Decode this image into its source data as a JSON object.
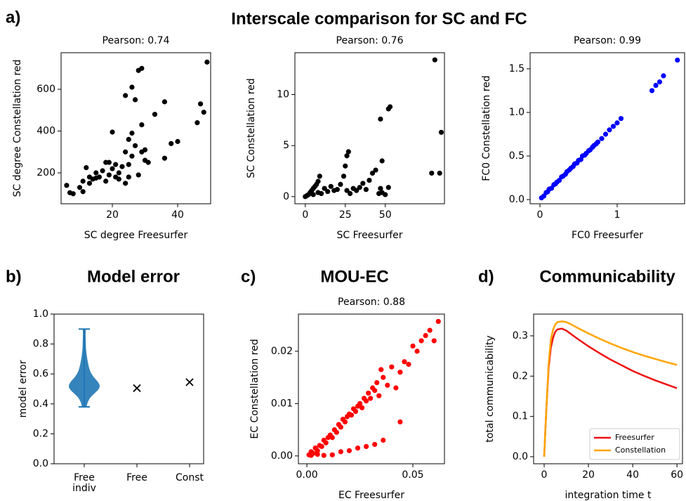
{
  "figure": {
    "panel_label": "a)",
    "title": "Interscale comparison for SC and FC"
  },
  "chart_data": [
    {
      "type": "scatter",
      "subtitle": "Pearson: 0.74",
      "xlabel": "SC degree Freesurfer",
      "ylabel": "SC degree Constellation red",
      "color": "#000000",
      "x": [
        6,
        7,
        8,
        10,
        11,
        11,
        12,
        13,
        13,
        14,
        15,
        15,
        16,
        17,
        18,
        18,
        19,
        19,
        20,
        20,
        21,
        21,
        22,
        22,
        23,
        24,
        24,
        24,
        25,
        25,
        25,
        26,
        26,
        26,
        27,
        27,
        28,
        28,
        29,
        29,
        29,
        30,
        30,
        31,
        33,
        36,
        36,
        38,
        40,
        46,
        47,
        48,
        49
      ],
      "y": [
        140,
        105,
        100,
        130,
        110,
        160,
        225,
        150,
        180,
        170,
        175,
        200,
        180,
        210,
        250,
        160,
        190,
        250,
        220,
        395,
        240,
        180,
        200,
        170,
        230,
        150,
        300,
        570,
        360,
        240,
        180,
        390,
        610,
        280,
        550,
        330,
        190,
        690,
        700,
        300,
        430,
        310,
        260,
        250,
        480,
        540,
        270,
        340,
        350,
        440,
        530,
        490,
        730
      ],
      "xlim": [
        4.3,
        50.1
      ],
      "ylim": [
        52,
        775
      ],
      "xticks": [
        20,
        40
      ],
      "yticks": [
        200,
        400,
        600
      ]
    },
    {
      "type": "scatter",
      "subtitle": "Pearson: 0.76",
      "xlabel": "SC Freesurfer",
      "ylabel": "SC Constellation red",
      "color": "#000000",
      "x": [
        0,
        1,
        2,
        3,
        4,
        5,
        6,
        7,
        8,
        9,
        5,
        8,
        10,
        12,
        14,
        16,
        18,
        20,
        22,
        24,
        25,
        26,
        27,
        26,
        28,
        30,
        32,
        34,
        36,
        38,
        40,
        42,
        44,
        46,
        47,
        48,
        48,
        50,
        47,
        53,
        52,
        52,
        81,
        85,
        79,
        84
      ],
      "y": [
        0,
        0.1,
        0.2,
        0.4,
        0.6,
        0.8,
        1.0,
        1.2,
        1.5,
        2.0,
        0.2,
        0.4,
        0.3,
        0.8,
        0.5,
        1.0,
        0.6,
        0.7,
        1.2,
        2.0,
        3.0,
        4.0,
        4.4,
        0.6,
        0.3,
        0.8,
        0.6,
        0.9,
        1.3,
        0.7,
        1.6,
        2.3,
        2.6,
        0.3,
        0.8,
        3.5,
        0.4,
        0.2,
        7.6,
        8.8,
        8.6,
        0.9,
        13.4,
        6.3,
        2.3,
        2.3
      ],
      "xlim": [
        -6.5,
        87
      ],
      "ylim": [
        -0.7,
        14.1
      ],
      "xticks": [
        0,
        25,
        50
      ],
      "yticks": [
        0,
        5,
        10
      ]
    },
    {
      "type": "scatter",
      "subtitle": "Pearson: 0.99",
      "xlabel": "FC0 Freesurfer",
      "ylabel": "FC0 Constellation red",
      "color": "#0000ff",
      "x": [
        0.02,
        0.05,
        0.08,
        0.1,
        0.12,
        0.15,
        0.18,
        0.2,
        0.22,
        0.25,
        0.28,
        0.3,
        0.33,
        0.35,
        0.38,
        0.4,
        0.43,
        0.45,
        0.48,
        0.5,
        0.53,
        0.55,
        0.58,
        0.6,
        0.63,
        0.65,
        0.68,
        0.7,
        0.73,
        0.75,
        0.8,
        0.85,
        0.9,
        0.95,
        1.0,
        1.05,
        1.45,
        1.5,
        1.55,
        1.6,
        1.78
      ],
      "y": [
        0.02,
        0.04,
        0.08,
        0.09,
        0.12,
        0.13,
        0.17,
        0.18,
        0.2,
        0.22,
        0.26,
        0.27,
        0.29,
        0.32,
        0.34,
        0.36,
        0.38,
        0.41,
        0.42,
        0.45,
        0.46,
        0.5,
        0.51,
        0.53,
        0.56,
        0.57,
        0.6,
        0.62,
        0.64,
        0.66,
        0.7,
        0.75,
        0.8,
        0.84,
        0.88,
        0.93,
        1.25,
        1.31,
        1.35,
        1.42,
        1.6
      ],
      "xlim": [
        -0.127,
        1.873
      ],
      "ylim": [
        -0.048,
        1.685
      ],
      "xticks": [
        0,
        1
      ],
      "yticks": [
        {
          "value": 0,
          "label": "0.0"
        },
        {
          "value": 0.5,
          "label": "0.5"
        },
        {
          "value": 1,
          "label": "1.0"
        },
        {
          "value": 1.5,
          "label": "1.5"
        }
      ]
    },
    {
      "type": "violin",
      "panel_label": "b)",
      "title": "Model error",
      "ylabel": "model error",
      "color": "#1f77b4",
      "categories": [
        "Free\nindiv",
        "Free",
        "Const"
      ],
      "violin_samples": [
        0.38,
        0.42,
        0.45,
        0.47,
        0.48,
        0.49,
        0.5,
        0.5,
        0.51,
        0.51,
        0.52,
        0.52,
        0.53,
        0.53,
        0.54,
        0.55,
        0.56,
        0.57,
        0.58,
        0.6,
        0.62,
        0.64,
        0.67,
        0.7,
        0.75,
        0.82,
        0.9
      ],
      "marker_values": [
        null,
        0.505,
        0.545
      ],
      "marker_color": "#000000",
      "ylim": [
        0,
        1
      ],
      "yticks": [
        {
          "value": 0,
          "label": "0.0"
        },
        {
          "value": 0.2,
          "label": "0.2"
        },
        {
          "value": 0.4,
          "label": "0.4"
        },
        {
          "value": 0.6,
          "label": "0.6"
        },
        {
          "value": 0.8,
          "label": "0.8"
        },
        {
          "value": 1,
          "label": "1.0"
        }
      ]
    },
    {
      "type": "scatter",
      "panel_label": "c)",
      "title": "MOU-EC",
      "subtitle": "Pearson: 0.88",
      "xlabel": "EC Freesurfer",
      "ylabel": "EC Constellation red",
      "color": "#ff0000",
      "x": [
        0.001,
        0.002,
        0.003,
        0.004,
        0.005,
        0.006,
        0.007,
        0.008,
        0.009,
        0.01,
        0.011,
        0.012,
        0.013,
        0.014,
        0.015,
        0.016,
        0.017,
        0.018,
        0.019,
        0.02,
        0.021,
        0.022,
        0.023,
        0.024,
        0.025,
        0.026,
        0.027,
        0.028,
        0.029,
        0.03,
        0.031,
        0.032,
        0.033,
        0.034,
        0.035,
        0.036,
        0.038,
        0.04,
        0.042,
        0.044,
        0.046,
        0.048,
        0.05,
        0.052,
        0.054,
        0.056,
        0.058,
        0.06,
        0.062,
        0.002,
        0.005,
        0.008,
        0.012,
        0.016,
        0.02,
        0.024,
        0.028,
        0.032,
        0.036,
        0.044
      ],
      "y": [
        0.0002,
        0.0008,
        0.0005,
        0.0015,
        0.001,
        0.002,
        0.0018,
        0.003,
        0.0025,
        0.0035,
        0.004,
        0.0035,
        0.005,
        0.0045,
        0.006,
        0.0055,
        0.007,
        0.0065,
        0.0075,
        0.008,
        0.0078,
        0.009,
        0.0085,
        0.0095,
        0.01,
        0.0092,
        0.011,
        0.0105,
        0.012,
        0.011,
        0.013,
        0.0125,
        0.014,
        0.0115,
        0.0165,
        0.015,
        0.0135,
        0.017,
        0.013,
        0.016,
        0.018,
        0.0175,
        0.021,
        0.02,
        0.022,
        0.023,
        0.024,
        0.022,
        0.0257,
        0.0001,
        0.0003,
        0.0001,
        0.0002,
        0.0008,
        0.001,
        0.0015,
        0.0018,
        0.0022,
        0.003,
        0.0065
      ],
      "xlim": [
        -0.004,
        0.0649
      ],
      "ylim": [
        -0.0015,
        0.0271
      ],
      "xticks": [
        {
          "value": 0,
          "label": "0.00"
        },
        {
          "value": 0.05,
          "label": "0.05"
        }
      ],
      "yticks": [
        {
          "value": 0,
          "label": "0.00"
        },
        {
          "value": 0.01,
          "label": "0.01"
        },
        {
          "value": 0.02,
          "label": "0.02"
        }
      ]
    },
    {
      "type": "line",
      "panel_label": "d)",
      "title": "Communicability",
      "xlabel": "integration time t",
      "ylabel": "total communicability",
      "legend": "lower right",
      "x": [
        0,
        1,
        2,
        3,
        4,
        5,
        6,
        8,
        10,
        12,
        15,
        20,
        25,
        30,
        35,
        40,
        45,
        50,
        55,
        60
      ],
      "series": [
        {
          "name": "Freesurfer",
          "color": "#ee1111",
          "values": [
            0,
            0.12,
            0.22,
            0.27,
            0.295,
            0.31,
            0.316,
            0.318,
            0.313,
            0.305,
            0.293,
            0.274,
            0.257,
            0.241,
            0.227,
            0.213,
            0.201,
            0.19,
            0.18,
            0.17
          ]
        },
        {
          "name": "Constellation",
          "color": "#ffa500",
          "values": [
            0,
            0.12,
            0.23,
            0.29,
            0.315,
            0.328,
            0.334,
            0.336,
            0.334,
            0.329,
            0.32,
            0.306,
            0.293,
            0.281,
            0.27,
            0.26,
            0.251,
            0.243,
            0.235,
            0.228
          ]
        }
      ],
      "xlim": [
        -4.76,
        62.5
      ],
      "ylim": [
        -0.0175,
        0.354
      ],
      "xticks": [
        0,
        20,
        40,
        60
      ],
      "yticks": [
        {
          "value": 0,
          "label": "0.0"
        },
        {
          "value": 0.1,
          "label": "0.1"
        },
        {
          "value": 0.2,
          "label": "0.2"
        },
        {
          "value": 0.3,
          "label": "0.3"
        }
      ]
    }
  ]
}
